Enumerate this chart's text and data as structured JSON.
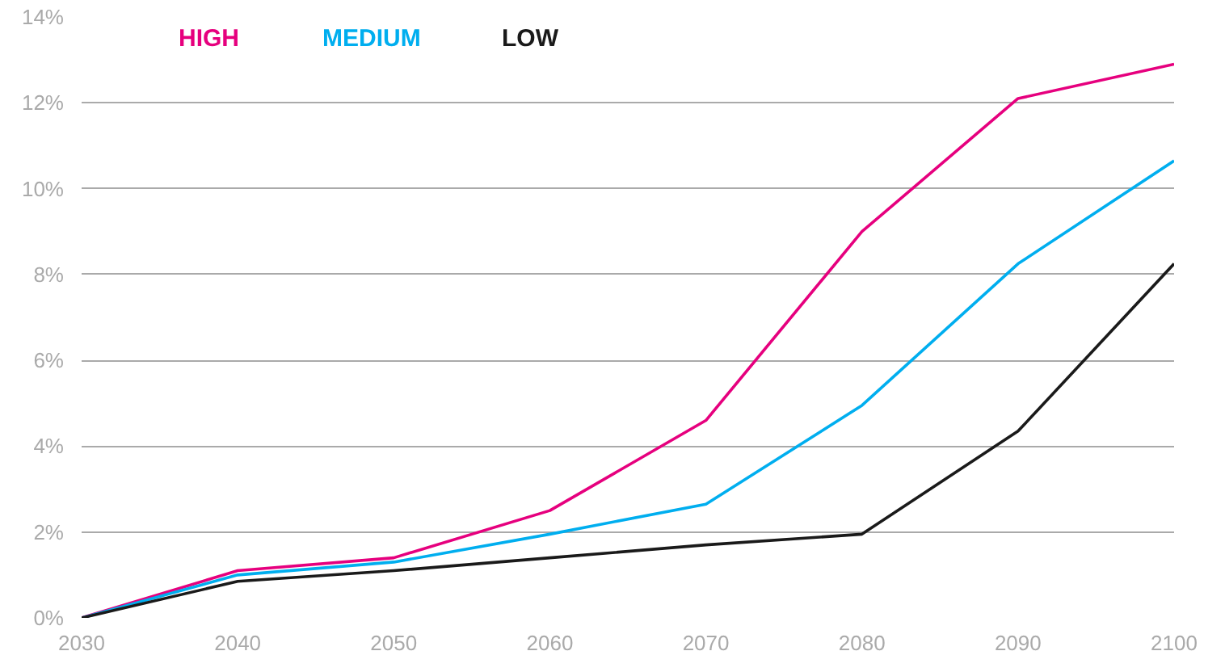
{
  "chart_data": {
    "type": "line",
    "x": [
      2030,
      2040,
      2050,
      2060,
      2070,
      2080,
      2090,
      2100
    ],
    "series": [
      {
        "name": "HIGH",
        "color": "#e6007e",
        "values": [
          0,
          1.1,
          1.4,
          2.5,
          4.6,
          9.0,
          12.1,
          12.9
        ]
      },
      {
        "name": "MEDIUM",
        "color": "#00aeef",
        "values": [
          0,
          1.0,
          1.3,
          1.95,
          2.65,
          4.95,
          8.25,
          10.65
        ]
      },
      {
        "name": "LOW",
        "color": "#1a1a1a",
        "values": [
          0,
          0.85,
          1.1,
          1.4,
          1.7,
          1.95,
          4.35,
          8.25
        ]
      }
    ],
    "xlim": [
      2030,
      2100
    ],
    "xticks": [
      2030,
      2040,
      2050,
      2060,
      2070,
      2080,
      2090,
      2100
    ],
    "ylim": [
      0,
      14
    ],
    "yticks": [
      {
        "value": 0,
        "label": "0%"
      },
      {
        "value": 2,
        "label": "2%"
      },
      {
        "value": 4,
        "label": "4%"
      },
      {
        "value": 6,
        "label": "6%"
      },
      {
        "value": 8,
        "label": "8%"
      },
      {
        "value": 10,
        "label": "10%"
      },
      {
        "value": 12,
        "label": "12%"
      },
      {
        "value": 14,
        "label": "14%"
      }
    ],
    "grid": "y",
    "legend": "top left",
    "marker": "none",
    "line_style": "solid"
  }
}
